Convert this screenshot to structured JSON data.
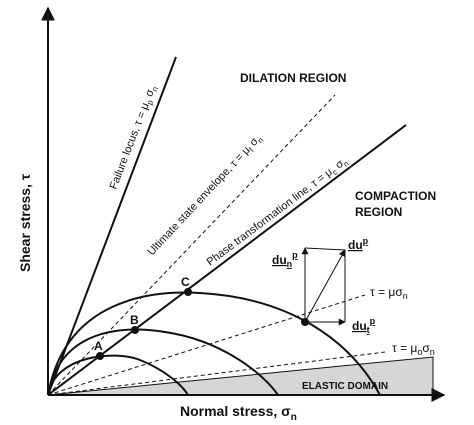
{
  "axes": {
    "x_label": "Normal stress, σ",
    "x_label_sub": "n",
    "y_label": "Shear stress, τ"
  },
  "regions": {
    "dilation": "DILATION REGION",
    "compaction_line1": "COMPACTION",
    "compaction_line2": "REGION",
    "elastic": "ELASTIC DOMAIN"
  },
  "lines": {
    "failure_locus": {
      "text": "Failure locus, τ = μ",
      "sub": "p",
      "tail": " σ",
      "tail_sub": "n"
    },
    "ultimate_state": {
      "text": "Ultimate state envelope, τ = μ",
      "sub": "f",
      "tail": " σ",
      "tail_sub": "n"
    },
    "phase_transformation": {
      "text": "Phase transformation line, τ = μ",
      "sub": "c",
      "tail": " σ",
      "tail_sub": "n"
    },
    "tau_mu": {
      "text": "τ = μσ",
      "sub": "n"
    },
    "tau_mu0": {
      "text": "τ = μ",
      "sub": "o",
      "tail": "σ",
      "tail_sub": "n"
    }
  },
  "points": {
    "A": "A",
    "B": "B",
    "C": "C"
  },
  "vectors": {
    "du_n": {
      "text": "du",
      "sub": "n",
      "sup": "p"
    },
    "du_p": {
      "text": "du",
      "sup": "p"
    },
    "du_t": {
      "text": "du",
      "sub": "t",
      "sup": "p"
    }
  },
  "colors": {
    "line": "#111111",
    "elastic_fill": "#d6d6d6"
  }
}
